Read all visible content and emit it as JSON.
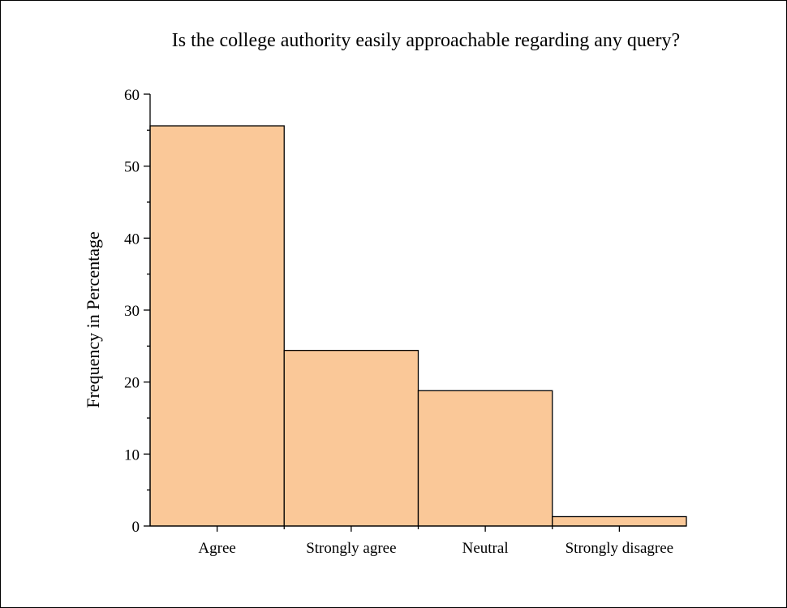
{
  "chart_data": {
    "type": "bar",
    "title": "Is the college authority easily approachable regarding any query?",
    "xlabel": "",
    "ylabel": "Frequency in Percentage",
    "categories": [
      "Agree",
      "Strongly agree",
      "Neutral",
      "Strongly disagree"
    ],
    "values": [
      55.6,
      24.4,
      18.8,
      1.3
    ],
    "ylim": [
      0,
      60
    ],
    "yticks": [
      0,
      10,
      20,
      30,
      40,
      50,
      60
    ],
    "bar_color": "#fac898",
    "bar_edge_color": "#000000",
    "grid": false,
    "legend": "none"
  }
}
